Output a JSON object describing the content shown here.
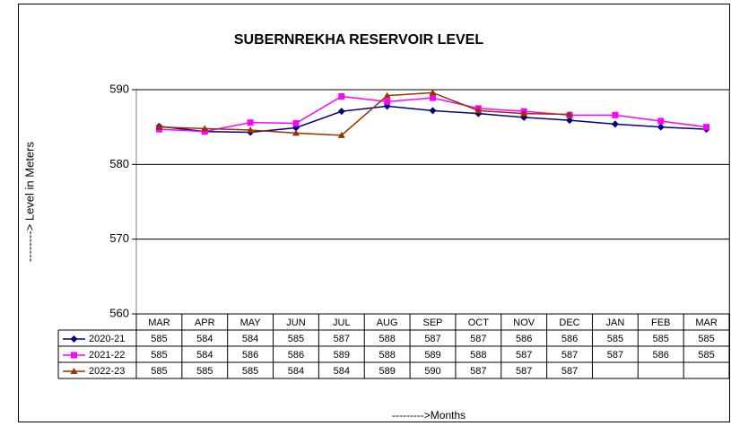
{
  "chart_data": {
    "type": "line",
    "title": "SUBERNREKHA RESERVOIR LEVEL",
    "x_label": "--------->Months",
    "y_label": "--------> Level in Meters",
    "categories": [
      "MAR",
      "APR",
      "MAY",
      "JUN",
      "JUL",
      "AUG",
      "SEP",
      "OCT",
      "NOV",
      "DEC",
      "JAN",
      "FEB",
      "MAR"
    ],
    "series": [
      {
        "name": "2020-21",
        "color": "#000080",
        "marker": "diamond",
        "values": [
          585.1,
          584.4,
          584.3,
          584.9,
          587.1,
          587.8,
          587.2,
          586.8,
          586.3,
          585.9,
          585.4,
          585.0,
          584.7
        ],
        "value_labels": [
          "585",
          "584",
          "584",
          "585",
          "587",
          "588",
          "587",
          "587",
          "586",
          "586",
          "585",
          "585",
          "585"
        ]
      },
      {
        "name": "2021-22",
        "color": "#ff00ff",
        "marker": "square",
        "values": [
          584.7,
          584.4,
          585.6,
          585.5,
          589.1,
          588.4,
          588.9,
          587.5,
          587.1,
          586.6,
          586.6,
          585.8,
          585.0
        ],
        "value_labels": [
          "585",
          "584",
          "586",
          "586",
          "589",
          "588",
          "589",
          "588",
          "587",
          "587",
          "587",
          "586",
          "585"
        ]
      },
      {
        "name": "2022-23",
        "color": "#993300",
        "marker": "triangle",
        "values": [
          585.0,
          584.8,
          584.6,
          584.2,
          583.9,
          589.2,
          589.6,
          587.2,
          586.8,
          586.7,
          null,
          null,
          null
        ],
        "value_labels": [
          "585",
          "585",
          "585",
          "584",
          "584",
          "589",
          "590",
          "587",
          "587",
          "587",
          null,
          null,
          null
        ]
      }
    ],
    "ylim": [
      560,
      590
    ],
    "yticks": [
      560,
      570,
      580,
      590
    ],
    "grid": true,
    "legend": "data-table"
  }
}
